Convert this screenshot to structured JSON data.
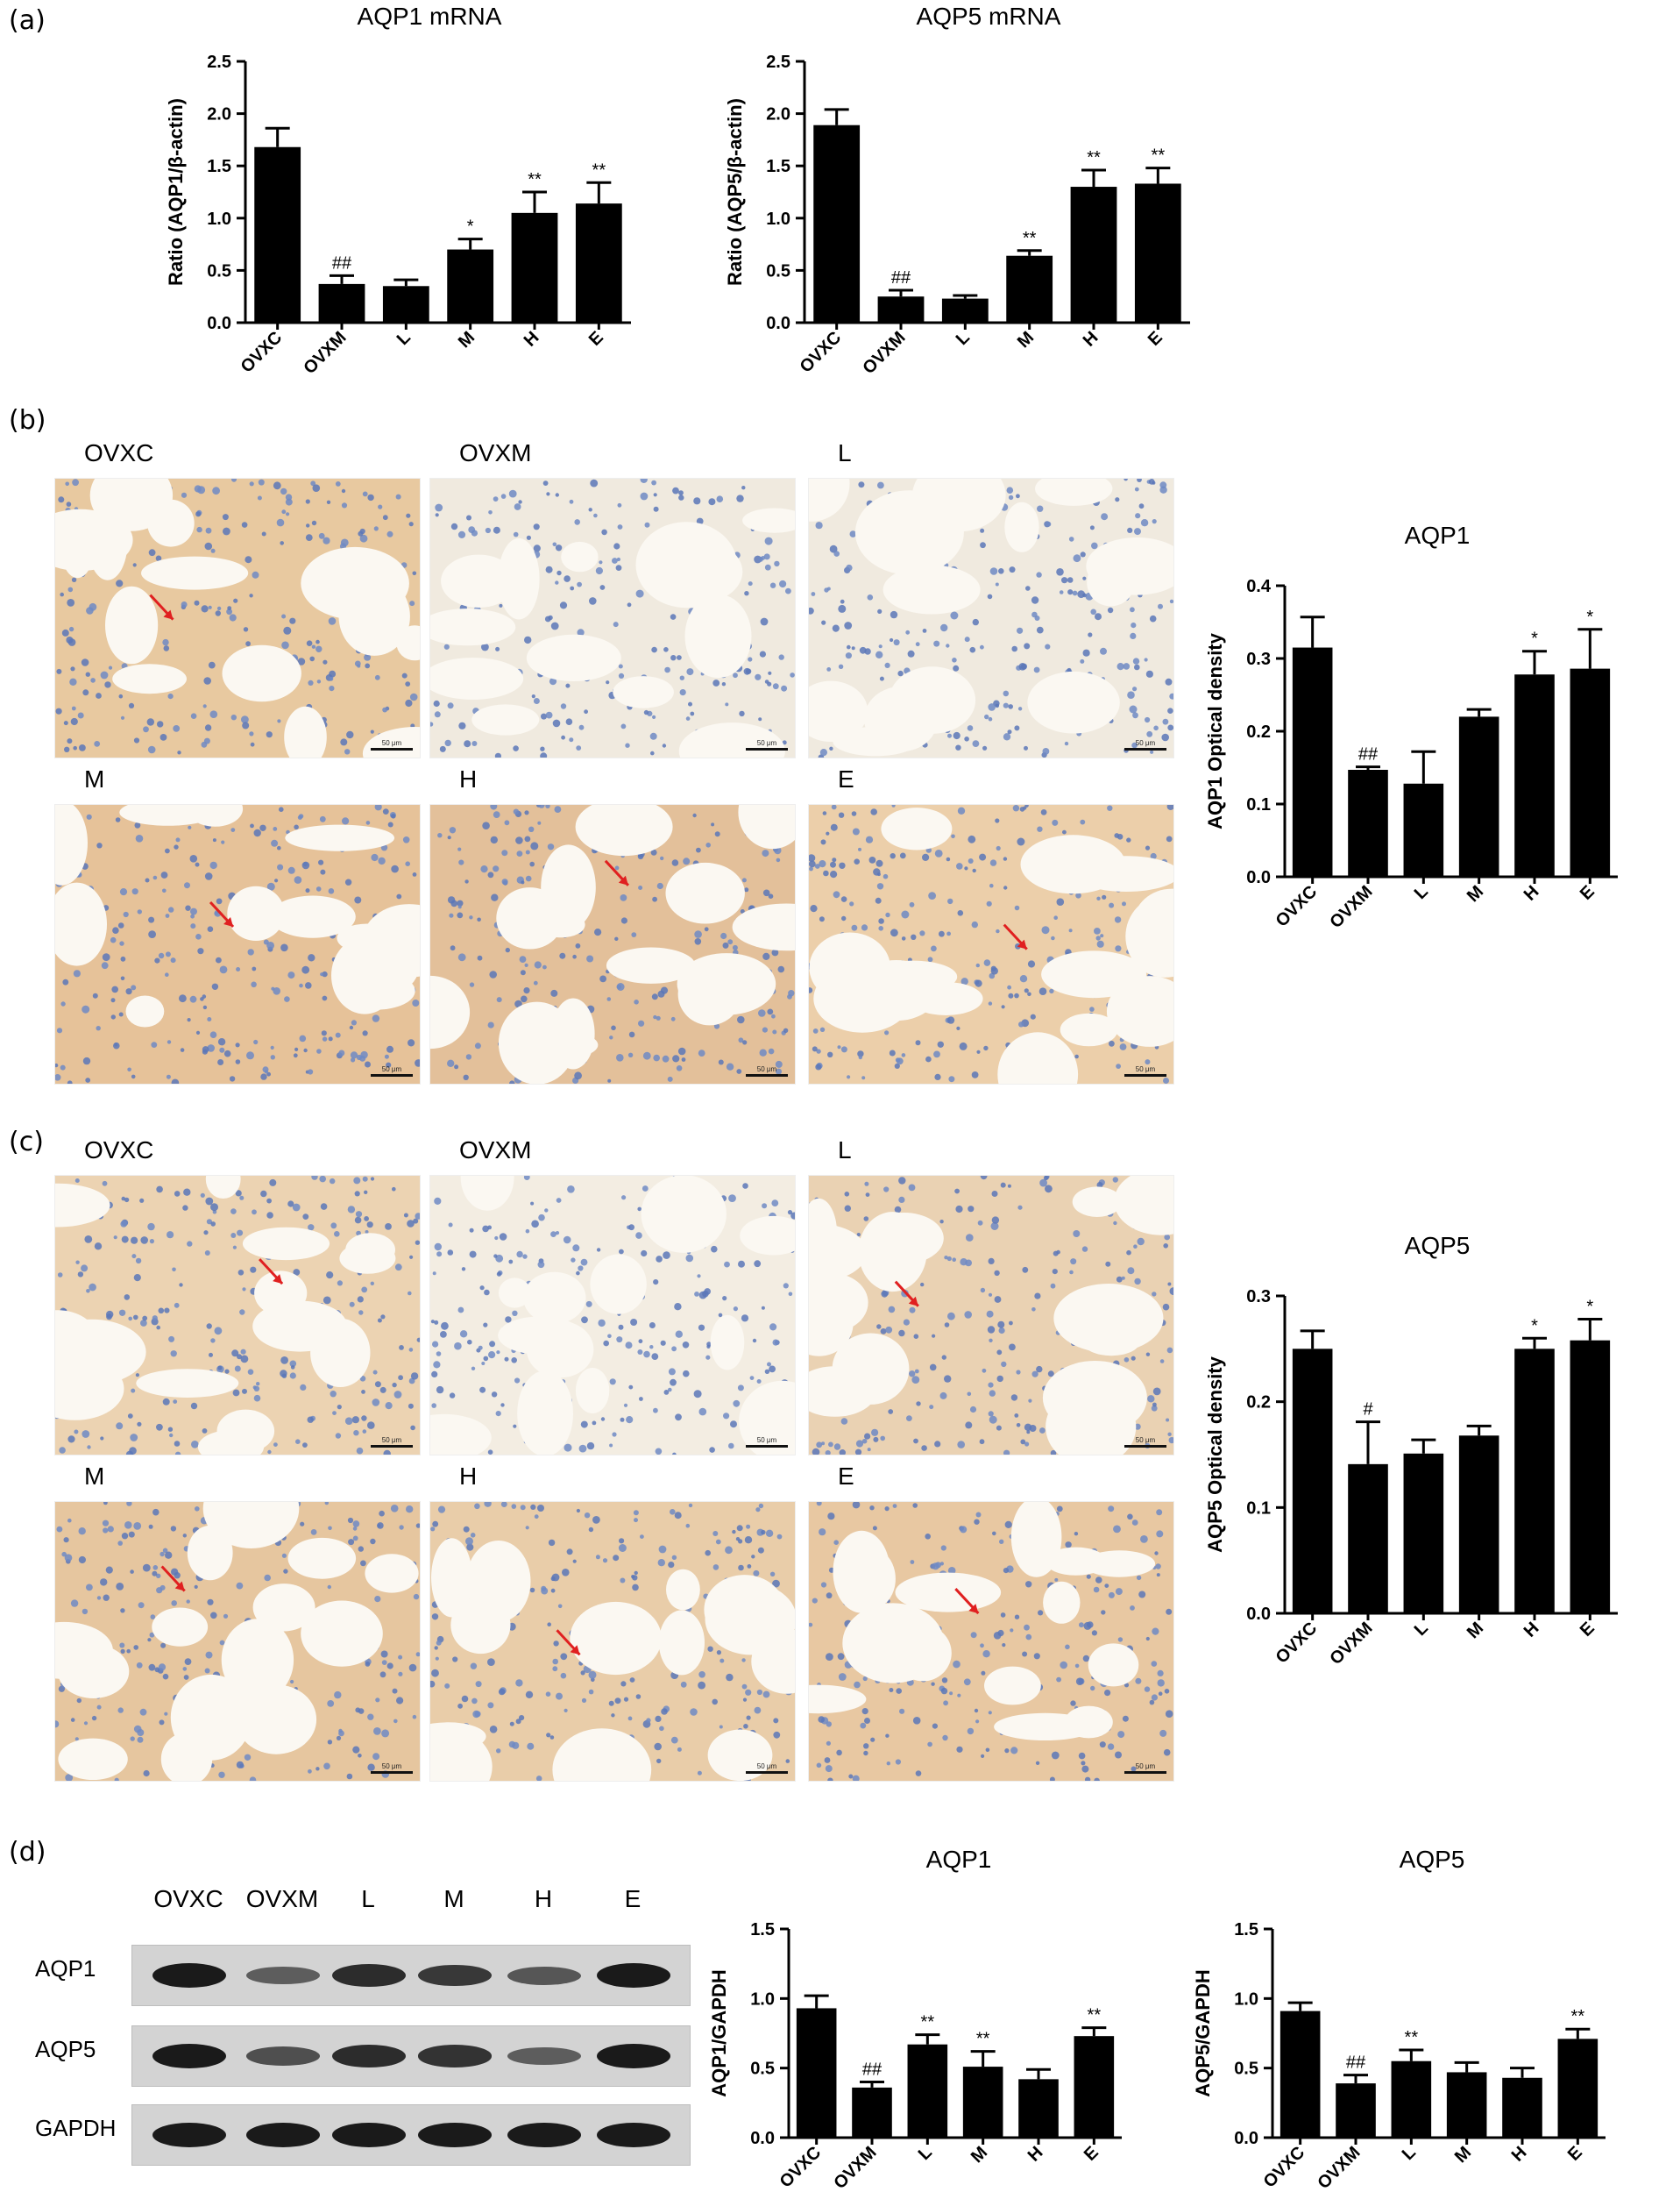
{
  "panels": {
    "a": "(a)",
    "b": "(b)",
    "c": "(c)",
    "d": "(d)"
  },
  "group_labels": [
    "OVXC",
    "OVXM",
    "L",
    "M",
    "H",
    "E"
  ],
  "micrographs": {
    "scale_text": "50 μm",
    "b": {
      "labels": [
        "OVXC",
        "OVXM",
        "L",
        "M",
        "H",
        "E"
      ]
    },
    "c": {
      "labels": [
        "OVXC",
        "OVXM",
        "L",
        "M",
        "H",
        "E"
      ]
    }
  },
  "blot": {
    "lanes": [
      "OVXC",
      "OVXM",
      "L",
      "M",
      "H",
      "E"
    ],
    "rows": [
      {
        "label": "AQP1",
        "intensity": [
          1.0,
          0.45,
          0.85,
          0.75,
          0.5,
          1.0
        ]
      },
      {
        "label": "AQP5",
        "intensity": [
          1.0,
          0.55,
          0.85,
          0.8,
          0.45,
          1.0
        ]
      },
      {
        "label": "GAPDH",
        "intensity": [
          1.0,
          1.0,
          1.0,
          1.0,
          1.0,
          1.0
        ]
      }
    ]
  },
  "chart_data": [
    {
      "id": "a1",
      "type": "bar",
      "title": "AQP1 mRNA",
      "ylabel": "Ratio (AQP1/β-actin)",
      "categories": [
        "OVXC",
        "OVXM",
        "L",
        "M",
        "H",
        "E"
      ],
      "values": [
        1.68,
        0.37,
        0.35,
        0.7,
        1.05,
        1.14
      ],
      "errors": [
        0.18,
        0.08,
        0.06,
        0.1,
        0.2,
        0.2
      ],
      "annotations": [
        "",
        "##",
        "",
        "*",
        "**",
        "**"
      ],
      "ylim": [
        0,
        2.5
      ],
      "yticks": [
        "0.0",
        "0.5",
        "1.0",
        "1.5",
        "2.0",
        "2.5"
      ]
    },
    {
      "id": "a2",
      "type": "bar",
      "title": "AQP5 mRNA",
      "ylabel": "Ratio (AQP5/β-actin)",
      "categories": [
        "OVXC",
        "OVXM",
        "L",
        "M",
        "H",
        "E"
      ],
      "values": [
        1.89,
        0.25,
        0.23,
        0.64,
        1.3,
        1.33
      ],
      "errors": [
        0.15,
        0.06,
        0.03,
        0.05,
        0.16,
        0.15
      ],
      "annotations": [
        "",
        "##",
        "",
        "**",
        "**",
        "**"
      ],
      "ylim": [
        0,
        2.5
      ],
      "yticks": [
        "0.0",
        "0.5",
        "1.0",
        "1.5",
        "2.0",
        "2.5"
      ]
    },
    {
      "id": "b",
      "type": "bar",
      "title": "AQP1",
      "ylabel": "AQP1 Optical density",
      "categories": [
        "OVXC",
        "OVXM",
        "L",
        "M",
        "H",
        "E"
      ],
      "values": [
        0.315,
        0.147,
        0.128,
        0.22,
        0.278,
        0.286
      ],
      "errors": [
        0.042,
        0.004,
        0.044,
        0.01,
        0.032,
        0.054
      ],
      "annotations": [
        "",
        "##",
        "",
        "",
        "*",
        "*"
      ],
      "ylim": [
        0,
        0.4
      ],
      "yticks": [
        "0.0",
        "0.1",
        "0.2",
        "0.3",
        "0.4"
      ]
    },
    {
      "id": "c",
      "type": "bar",
      "title": "AQP5",
      "ylabel": "AQP5 Optical density",
      "categories": [
        "OVXC",
        "OVXM",
        "L",
        "M",
        "H",
        "E"
      ],
      "values": [
        0.25,
        0.141,
        0.151,
        0.168,
        0.25,
        0.258
      ],
      "errors": [
        0.017,
        0.04,
        0.013,
        0.009,
        0.01,
        0.02
      ],
      "annotations": [
        "",
        "#",
        "",
        "",
        "*",
        "*"
      ],
      "ylim": [
        0,
        0.3
      ],
      "yticks": [
        "0.0",
        "0.1",
        "0.2",
        "0.3"
      ]
    },
    {
      "id": "d1",
      "type": "bar",
      "title": "AQP1",
      "ylabel": "AQP1/GAPDH",
      "categories": [
        "OVXC",
        "OVXM",
        "L",
        "M",
        "H",
        "E"
      ],
      "values": [
        0.93,
        0.36,
        0.67,
        0.51,
        0.42,
        0.73
      ],
      "errors": [
        0.09,
        0.04,
        0.07,
        0.11,
        0.07,
        0.06
      ],
      "annotations": [
        "",
        "##",
        "**",
        "**",
        "",
        "**"
      ],
      "ylim": [
        0,
        1.5
      ],
      "yticks": [
        "0.0",
        "0.5",
        "1.0",
        "1.5"
      ]
    },
    {
      "id": "d2",
      "type": "bar",
      "title": "AQP5",
      "ylabel": "AQP5/GAPDH",
      "categories": [
        "OVXC",
        "OVXM",
        "L",
        "M",
        "H",
        "E"
      ],
      "values": [
        0.91,
        0.39,
        0.55,
        0.47,
        0.43,
        0.71
      ],
      "errors": [
        0.06,
        0.06,
        0.08,
        0.07,
        0.07,
        0.07
      ],
      "annotations": [
        "",
        "##",
        "**",
        "",
        "",
        "**"
      ],
      "ylim": [
        0,
        1.5
      ],
      "yticks": [
        "0.0",
        "0.5",
        "1.0",
        "1.5"
      ]
    }
  ]
}
